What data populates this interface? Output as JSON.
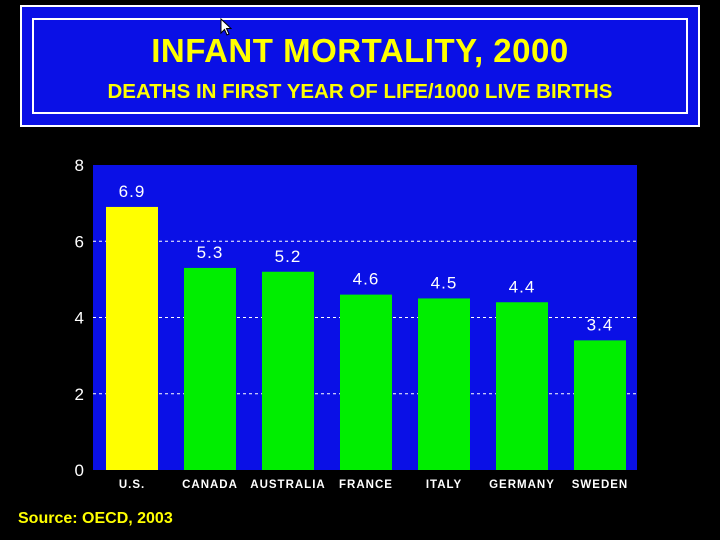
{
  "header": {
    "title": "INFANT MORTALITY, 2000",
    "subtitle": "DEATHS IN FIRST YEAR OF LIFE/1000 LIVE BIRTHS"
  },
  "source": "Source: OECD, 2003",
  "colors": {
    "background": "#000000",
    "plot_background": "#0a10e6",
    "highlight_bar": "#ffff00",
    "bar": "#00ee00",
    "text": "#ffff00",
    "axis_text": "#ffffff"
  },
  "chart_data": {
    "type": "bar",
    "categories": [
      "U.S.",
      "CANADA",
      "AUSTRALIA",
      "FRANCE",
      "ITALY",
      "GERMANY",
      "SWEDEN"
    ],
    "values": [
      6.9,
      5.3,
      5.2,
      4.6,
      4.5,
      4.4,
      3.4
    ],
    "data_labels": [
      "6.9",
      "5.3",
      "5.2",
      "4.6",
      "4.5",
      "4.4",
      "3.4"
    ],
    "highlight_index": 0,
    "ylim": [
      0,
      8
    ],
    "yticks": [
      "0",
      "2",
      "4",
      "6",
      "8"
    ],
    "grid": true,
    "legend": false
  }
}
